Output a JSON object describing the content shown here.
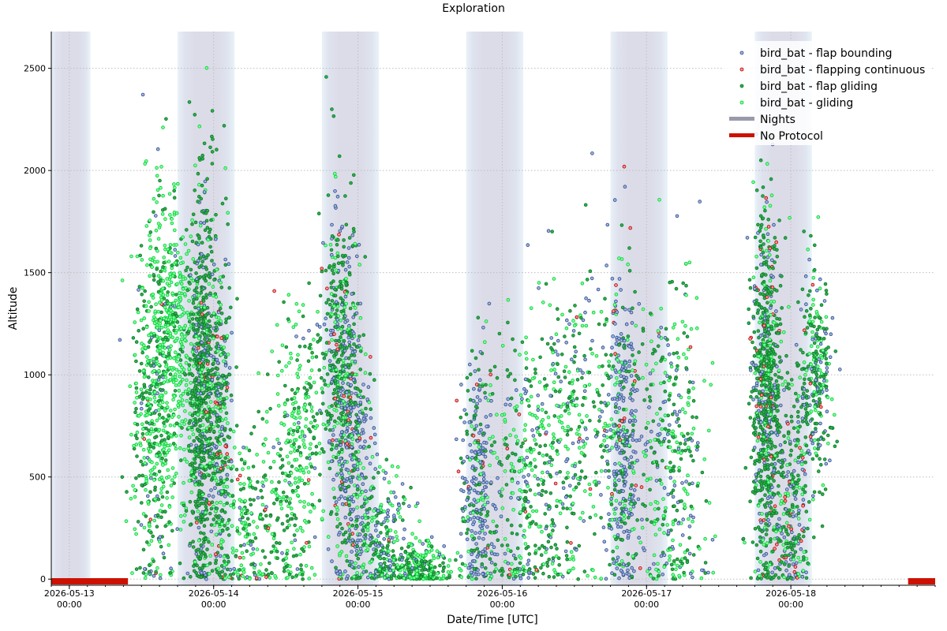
{
  "chart_data": {
    "type": "scatter",
    "title": "Exploration",
    "xlabel": "Date/Time [UTC]",
    "ylabel": "Altitude",
    "xlim": [
      "2026-05-12 21:00",
      "2026-05-19 00:00"
    ],
    "ylim": [
      -30,
      2680
    ],
    "yticks": [
      0,
      500,
      1000,
      1500,
      2000,
      2500
    ],
    "xticks": [
      {
        "date": "2026-05-13",
        "time": "00:00"
      },
      {
        "date": "2026-05-14",
        "time": "00:00"
      },
      {
        "date": "2026-05-15",
        "time": "00:00"
      },
      {
        "date": "2026-05-16",
        "time": "00:00"
      },
      {
        "date": "2026-05-17",
        "time": "00:00"
      },
      {
        "date": "2026-05-18",
        "time": "00:00"
      }
    ],
    "grid": true,
    "legend_position": "top-right",
    "nights": [
      [
        "2026-05-12 21:00",
        "2026-05-13 03:30"
      ],
      [
        "2026-05-13 18:00",
        "2026-05-14 03:30"
      ],
      [
        "2026-05-14 18:00",
        "2026-05-15 03:30"
      ],
      [
        "2026-05-15 18:00",
        "2026-05-16 03:30"
      ],
      [
        "2026-05-16 18:00",
        "2026-05-17 03:30"
      ],
      [
        "2026-05-17 18:00",
        "2026-05-18 03:30"
      ]
    ],
    "no_protocol": [
      [
        "2026-05-12 21:00",
        "2026-05-13 09:45"
      ],
      [
        "2026-05-18 19:30",
        "2026-05-19 00:00"
      ]
    ],
    "series": [
      {
        "name": "bird_bat - flap bounding",
        "marker": "circle",
        "edge_color": "#2d4a8a",
        "fill": "#9fb4e0"
      },
      {
        "name": "bird_bat - flapping continuous",
        "marker": "circle",
        "edge_color": "#b00000",
        "fill": "#ff9090"
      },
      {
        "name": "bird_bat - flap gliding",
        "marker": "circle",
        "edge_color": "#0a7a2a",
        "fill": "#2fae4a"
      },
      {
        "name": "bird_bat - gliding",
        "marker": "circle",
        "edge_color": "#00cc33",
        "fill": "#7dff9a"
      },
      {
        "name": "Nights",
        "marker": "line",
        "color": "#9a9aab"
      },
      {
        "name": "No Protocol",
        "marker": "line",
        "color": "#cc1100"
      }
    ]
  }
}
